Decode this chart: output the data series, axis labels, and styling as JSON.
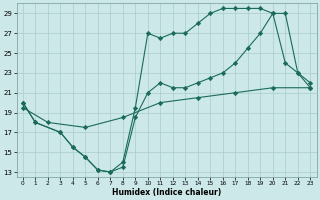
{
  "xlabel": "Humidex (Indice chaleur)",
  "xlim": [
    -0.5,
    23.5
  ],
  "ylim": [
    12.5,
    30
  ],
  "yticks": [
    13,
    15,
    17,
    19,
    21,
    23,
    25,
    27,
    29
  ],
  "xticks": [
    0,
    1,
    2,
    3,
    4,
    5,
    6,
    7,
    8,
    9,
    10,
    11,
    12,
    13,
    14,
    15,
    16,
    17,
    18,
    19,
    20,
    21,
    22,
    23
  ],
  "background_color": "#cce8e8",
  "grid_color": "#aacccc",
  "line_color": "#1a6b5a",
  "line1_x": [
    0,
    1,
    3,
    4,
    5,
    6,
    7,
    8,
    9,
    10,
    11,
    12,
    13,
    14,
    15,
    16,
    17,
    18,
    19,
    20,
    21,
    22,
    23
  ],
  "line1_y": [
    20,
    18,
    17,
    15.5,
    14.5,
    13.2,
    13,
    13.5,
    18.5,
    21,
    22,
    21.5,
    21.5,
    22,
    22.5,
    23,
    24,
    25.5,
    27,
    29,
    29,
    23,
    21.5
  ],
  "line2_x": [
    0,
    1,
    3,
    4,
    5,
    6,
    7,
    8,
    9,
    10,
    11,
    12,
    13,
    14,
    15,
    16,
    17,
    18,
    19,
    20,
    21,
    22,
    23
  ],
  "line2_y": [
    20,
    18,
    17,
    15.5,
    14.5,
    13.2,
    13,
    14,
    19.5,
    27,
    26.5,
    27,
    27,
    28,
    29,
    29.5,
    29.5,
    29.5,
    29.5,
    29,
    24,
    23,
    22
  ],
  "line3_x": [
    0,
    2,
    5,
    8,
    11,
    14,
    17,
    20,
    23
  ],
  "line3_y": [
    19.5,
    18,
    17.5,
    18.5,
    20,
    20.5,
    21,
    21.5,
    21.5
  ]
}
